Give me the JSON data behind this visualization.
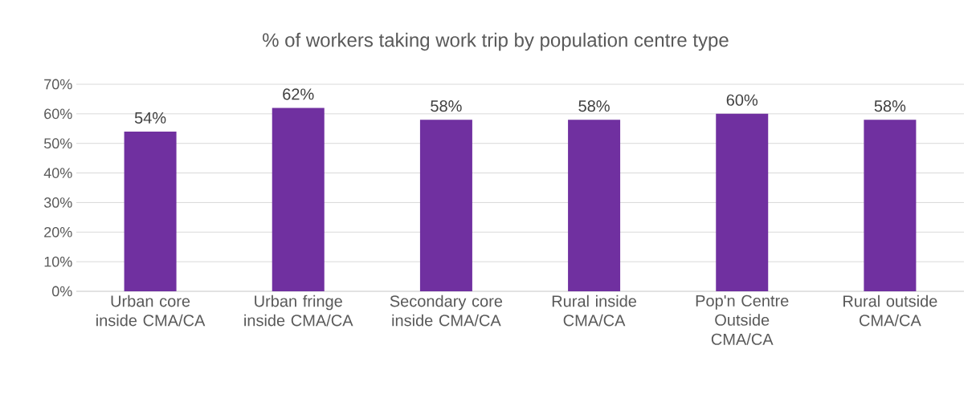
{
  "chart_data": {
    "type": "bar",
    "title": "% of workers taking work trip by population centre type",
    "categories": [
      "Urban core inside CMA/CA",
      "Urban fringe inside CMA/CA",
      "Secondary core inside CMA/CA",
      "Rural inside CMA/CA",
      "Pop'n Centre Outside CMA/CA",
      "Rural outside CMA/CA"
    ],
    "values": [
      54,
      62,
      58,
      58,
      60,
      58
    ],
    "value_labels": [
      "54%",
      "62%",
      "58%",
      "58%",
      "60%",
      "58%"
    ],
    "color": "#7030a0",
    "ylim": [
      0,
      70
    ],
    "yticks": [
      {
        "value": 0,
        "label": "0%"
      },
      {
        "value": 10,
        "label": "10%"
      },
      {
        "value": 20,
        "label": "20%"
      },
      {
        "value": 30,
        "label": "30%"
      },
      {
        "value": 40,
        "label": "40%"
      },
      {
        "value": 50,
        "label": "50%"
      },
      {
        "value": 60,
        "label": "60%"
      },
      {
        "value": 70,
        "label": "70%"
      }
    ],
    "grid": "y"
  }
}
